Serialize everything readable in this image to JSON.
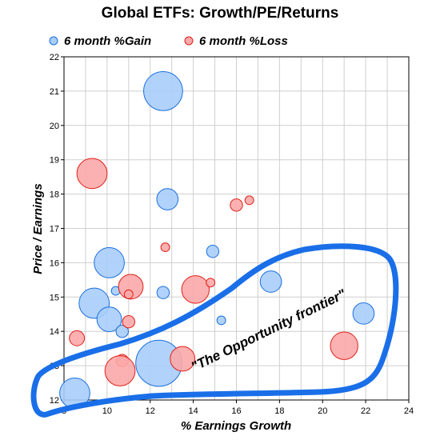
{
  "chart_data": {
    "type": "scatter",
    "title": "Global ETFs: Growth/PE/Returns",
    "xlabel": "% Earnings Growth",
    "ylabel": "Price / Earnings",
    "xlim": [
      8,
      24
    ],
    "ylim": [
      12,
      22
    ],
    "x_ticks": [
      "8",
      "10",
      "12",
      "14",
      "16",
      "18",
      "20",
      "22",
      "24"
    ],
    "y_ticks": [
      "12",
      "13",
      "14",
      "15",
      "16",
      "17",
      "18",
      "19",
      "20",
      "21",
      "22"
    ],
    "grid": true,
    "legend_position": "top",
    "annotation": "\"The Opportunity frontier\"",
    "colors": {
      "gain_fill": "#a8cdfa",
      "gain_stroke": "#1a6fe0",
      "loss_fill": "#fba8a8",
      "loss_stroke": "#e0201a",
      "frontier": "#1a6fe8"
    },
    "series": [
      {
        "name": "6 month %Gain",
        "points": [
          {
            "x": 12.6,
            "y": 21.0,
            "size": 10
          },
          {
            "x": 12.8,
            "y": 17.85,
            "size": 3
          },
          {
            "x": 10.1,
            "y": 16.0,
            "size": 6
          },
          {
            "x": 14.9,
            "y": 16.33,
            "size": 1
          },
          {
            "x": 10.4,
            "y": 15.18,
            "size": 0.5
          },
          {
            "x": 12.6,
            "y": 15.13,
            "size": 1
          },
          {
            "x": 17.6,
            "y": 15.45,
            "size": 3
          },
          {
            "x": 9.4,
            "y": 14.82,
            "size": 6
          },
          {
            "x": 10.1,
            "y": 14.35,
            "size": 4
          },
          {
            "x": 10.7,
            "y": 14.0,
            "size": 1
          },
          {
            "x": 15.3,
            "y": 14.32,
            "size": 0.5
          },
          {
            "x": 21.9,
            "y": 14.52,
            "size": 3
          },
          {
            "x": 12.4,
            "y": 13.07,
            "size": 14
          },
          {
            "x": 8.5,
            "y": 12.2,
            "size": 6
          }
        ]
      },
      {
        "name": "6 month %Loss",
        "points": [
          {
            "x": 9.3,
            "y": 18.6,
            "size": 6
          },
          {
            "x": 16.0,
            "y": 17.68,
            "size": 1
          },
          {
            "x": 16.6,
            "y": 17.82,
            "size": 0.5
          },
          {
            "x": 12.7,
            "y": 16.45,
            "size": 0.5
          },
          {
            "x": 11.1,
            "y": 15.3,
            "size": 4
          },
          {
            "x": 11.0,
            "y": 15.08,
            "size": 0.5
          },
          {
            "x": 14.1,
            "y": 15.22,
            "size": 5
          },
          {
            "x": 14.8,
            "y": 15.42,
            "size": 0.5
          },
          {
            "x": 11.0,
            "y": 14.28,
            "size": 1
          },
          {
            "x": 8.6,
            "y": 13.8,
            "size": 1.5
          },
          {
            "x": 10.7,
            "y": 13.15,
            "size": 1
          },
          {
            "x": 13.5,
            "y": 13.2,
            "size": 4
          },
          {
            "x": 10.6,
            "y": 12.85,
            "size": 6
          },
          {
            "x": 21.0,
            "y": 13.58,
            "size": 5
          }
        ]
      }
    ]
  }
}
